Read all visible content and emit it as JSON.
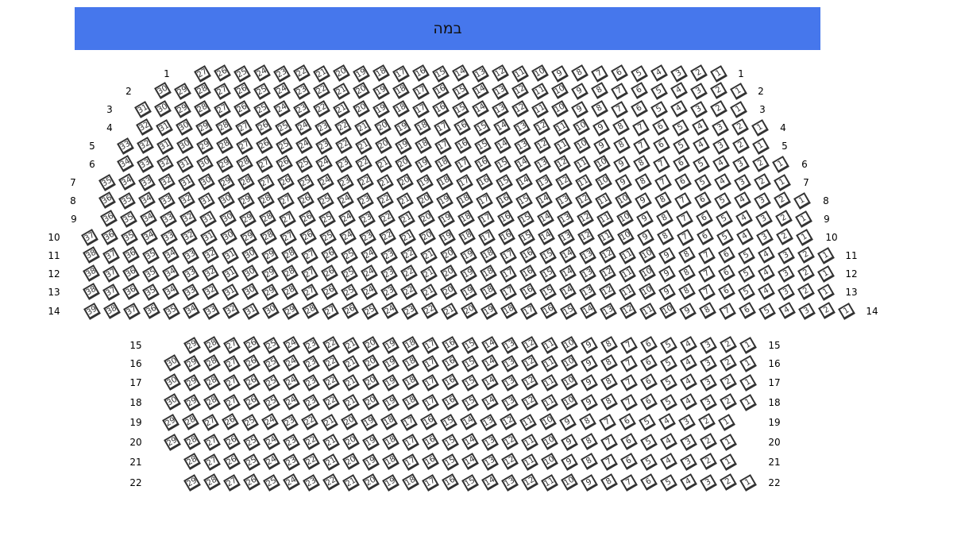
{
  "stage": {
    "label": "במה",
    "color": "#4677ec"
  },
  "sections": [
    {
      "name": "upper",
      "rows": [
        {
          "label": "1",
          "seats": 27
        },
        {
          "label": "2",
          "seats": 30
        },
        {
          "label": "3",
          "seats": 31
        },
        {
          "label": "4",
          "seats": 32
        },
        {
          "label": "5",
          "seats": 33
        },
        {
          "label": "6",
          "seats": 34
        },
        {
          "label": "7",
          "seats": 35
        },
        {
          "label": "8",
          "seats": 36
        },
        {
          "label": "9",
          "seats": 36
        },
        {
          "label": "10",
          "seats": 37
        },
        {
          "label": "11",
          "seats": 38
        },
        {
          "label": "12",
          "seats": 38
        },
        {
          "label": "13",
          "seats": 38
        },
        {
          "label": "14",
          "seats": 39
        }
      ]
    },
    {
      "name": "lower",
      "rows": [
        {
          "label": "15",
          "seats": 29
        },
        {
          "label": "16",
          "seats": 30
        },
        {
          "label": "17",
          "seats": 30
        },
        {
          "label": "18",
          "seats": 30
        },
        {
          "label": "19",
          "seats": 29
        },
        {
          "label": "20",
          "seats": 29
        },
        {
          "label": "21",
          "seats": 28
        },
        {
          "label": "22",
          "seats": 29
        }
      ]
    }
  ]
}
